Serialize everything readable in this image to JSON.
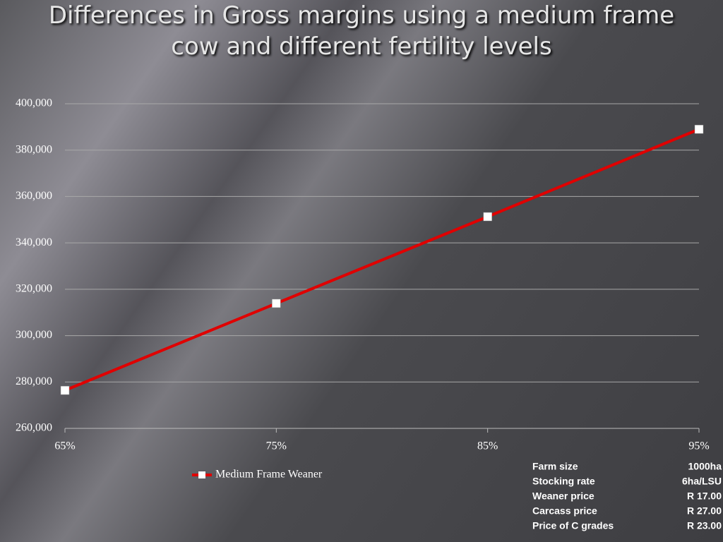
{
  "chart_data": {
    "type": "line",
    "title": "Differences in Gross margins using a medium frame cow and different fertility levels",
    "categories": [
      "65%",
      "75%",
      "85%",
      "95%"
    ],
    "series": [
      {
        "name": "Medium Frame Weaner",
        "color": "#e00000",
        "values": [
          276400,
          313900,
          351300,
          389000
        ]
      }
    ],
    "ylim": [
      260000,
      400000
    ],
    "yticks": [
      {
        "value": 260000,
        "label": "260,000"
      },
      {
        "value": 280000,
        "label": "280,000"
      },
      {
        "value": 300000,
        "label": "300,000"
      },
      {
        "value": 320000,
        "label": "320,000"
      },
      {
        "value": 340000,
        "label": "340,000"
      },
      {
        "value": 360000,
        "label": "360,000"
      },
      {
        "value": 380000,
        "label": "380,000"
      },
      {
        "value": 400000,
        "label": "400,000"
      }
    ],
    "grid": true,
    "legend": "bottom"
  },
  "info_table": {
    "rows": [
      [
        "Farm size",
        "1000ha"
      ],
      [
        "Stocking rate",
        "6ha/LSU"
      ],
      [
        "Weaner price",
        "R 17.00"
      ],
      [
        "Carcass price",
        "R 27.00"
      ],
      [
        "Price of C grades",
        "R 23.00"
      ]
    ]
  }
}
